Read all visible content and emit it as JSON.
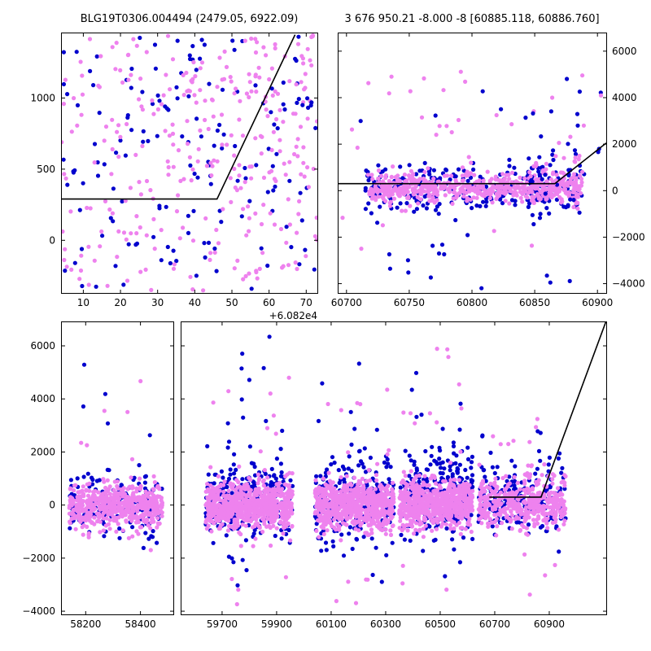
{
  "figure": {
    "background": "#ffffff",
    "frame_color": "#000000",
    "model_line_color": "#000000",
    "series_colors": {
      "blue": "#0000cd",
      "violet": "#ee82ee"
    },
    "marker_radius": 2.6
  },
  "chart_data": [
    {
      "id": "event-zoom",
      "type": "scatter",
      "title": "BLG19T0306.004494 (2479.05, 6922.09)",
      "xlim": [
        60824,
        60893
      ],
      "ylim": [
        -370,
        1460
      ],
      "x_offset_label": "+6.082e4",
      "xticks": [
        {
          "v": 60830,
          "label": "10"
        },
        {
          "v": 60840,
          "label": "20"
        },
        {
          "v": 60850,
          "label": "30"
        },
        {
          "v": 60860,
          "label": "40"
        },
        {
          "v": 60870,
          "label": "50"
        },
        {
          "v": 60880,
          "label": "60"
        },
        {
          "v": 60890,
          "label": "70"
        }
      ],
      "yticks": [
        {
          "v": 0,
          "label": "0"
        },
        {
          "v": 500,
          "label": "500"
        },
        {
          "v": 1000,
          "label": "1000"
        }
      ],
      "ytick_label_side": "left",
      "model_line": [
        [
          60824,
          290
        ],
        [
          60866,
          290
        ],
        [
          60887,
          1445
        ]
      ],
      "clusters": [
        {
          "color": "blue",
          "n": 130,
          "x": [
            60824,
            60893
          ],
          "ydist": "uniform",
          "y": [
            -360,
            1440
          ]
        },
        {
          "color": "violet",
          "n": 250,
          "x": [
            60824,
            60893
          ],
          "ydist": "uniform",
          "y": [
            -360,
            1440
          ]
        },
        {
          "color": "blue",
          "n": 30,
          "x": [
            60856,
            60892
          ],
          "ydist": "uniform",
          "y": [
            400,
            1440
          ]
        },
        {
          "color": "violet",
          "n": 60,
          "x": [
            60856,
            60892
          ],
          "ydist": "uniform",
          "y": [
            400,
            1440
          ]
        }
      ]
    },
    {
      "id": "season-zoom",
      "type": "scatter",
      "title": "3 676 950.21 -8.000 -8 [60885.118, 60886.760]",
      "xlim": [
        60693,
        60907
      ],
      "ylim": [
        -4400,
        6800
      ],
      "xticks": [
        {
          "v": 60700,
          "label": "60700"
        },
        {
          "v": 60750,
          "label": "60750"
        },
        {
          "v": 60800,
          "label": "60800"
        },
        {
          "v": 60850,
          "label": "60850"
        },
        {
          "v": 60900,
          "label": "60900"
        }
      ],
      "yticks": [
        {
          "v": 6000,
          "label": "6000"
        },
        {
          "v": 4000,
          "label": "4000"
        },
        {
          "v": 2000,
          "label": "2000"
        },
        {
          "v": 0,
          "label": "0"
        },
        {
          "v": -2000,
          "label": "−2000"
        },
        {
          "v": -4000,
          "label": "−4000"
        }
      ],
      "ytick_label_side": "right",
      "model_line": [
        [
          60693,
          300
        ],
        [
          60866,
          300
        ],
        [
          60907,
          2050
        ]
      ],
      "clusters": [
        {
          "color": "blue",
          "n": 270,
          "x": [
            60715,
            60888
          ],
          "ydist": "normal",
          "mu": 120,
          "sigma": 520,
          "clip": [
            -1900,
            2100
          ]
        },
        {
          "color": "blue",
          "n": 40,
          "x": [
            60695,
            60905
          ],
          "ydist": "uniform",
          "y": [
            -4300,
            5100
          ]
        },
        {
          "color": "violet",
          "n": 580,
          "x": [
            60718,
            60888
          ],
          "ydist": "normal",
          "mu": 130,
          "sigma": 300,
          "clip": [
            -1100,
            1400
          ]
        },
        {
          "color": "violet",
          "n": 45,
          "x": [
            60695,
            60905
          ],
          "ydist": "uniform",
          "y": [
            -2700,
            5200
          ]
        },
        {
          "color": "blue",
          "n": 35,
          "x": [
            60845,
            60888
          ],
          "ydist": "normal",
          "mu": 400,
          "sigma": 1100,
          "clip": [
            -2600,
            3600
          ]
        },
        {
          "color": "violet",
          "n": 50,
          "x": [
            60845,
            60888
          ],
          "ydist": "normal",
          "mu": 350,
          "sigma": 800,
          "clip": [
            -2200,
            3000
          ]
        }
      ]
    },
    {
      "id": "full-left",
      "type": "scatter",
      "title": "",
      "xlim": [
        58110,
        58520
      ],
      "ylim": [
        -4120,
        6920
      ],
      "xticks": [
        {
          "v": 58200,
          "label": "58200"
        },
        {
          "v": 58400,
          "label": "58400"
        }
      ],
      "yticks": [
        {
          "v": 6000,
          "label": "6000"
        },
        {
          "v": 4000,
          "label": "4000"
        },
        {
          "v": 2000,
          "label": "2000"
        },
        {
          "v": 0,
          "label": "0"
        },
        {
          "v": -2000,
          "label": "−2000"
        },
        {
          "v": -4000,
          "label": "−4000"
        }
      ],
      "ytick_label_side": "left",
      "model_line": null,
      "clusters": [
        {
          "color": "blue",
          "n": 170,
          "x": [
            58140,
            58480
          ],
          "ydist": "normal",
          "mu": 80,
          "sigma": 620,
          "clip": [
            -1500,
            2300
          ]
        },
        {
          "color": "blue",
          "n": 10,
          "x": [
            58160,
            58460
          ],
          "ydist": "uniform",
          "y": [
            -1800,
            6300
          ]
        },
        {
          "color": "violet",
          "n": 520,
          "x": [
            58140,
            58480
          ],
          "ydist": "normal",
          "mu": -30,
          "sigma": 420,
          "clip": [
            -2300,
            1400
          ]
        },
        {
          "color": "violet",
          "n": 10,
          "x": [
            58160,
            58460
          ],
          "ydist": "uniform",
          "y": [
            -2200,
            4700
          ]
        }
      ]
    },
    {
      "id": "full-right",
      "type": "scatter",
      "title": "",
      "xlim": [
        59548,
        61109
      ],
      "ylim": [
        -4120,
        6920
      ],
      "xticks": [
        {
          "v": 59700,
          "label": "59700"
        },
        {
          "v": 59900,
          "label": "59900"
        },
        {
          "v": 60100,
          "label": "60100"
        },
        {
          "v": 60300,
          "label": "60300"
        },
        {
          "v": 60500,
          "label": "60500"
        },
        {
          "v": 60700,
          "label": "60700"
        },
        {
          "v": 60900,
          "label": "60900"
        }
      ],
      "yticks": [
        {
          "v": 6000
        },
        {
          "v": 4000
        },
        {
          "v": 2000
        },
        {
          "v": 0
        },
        {
          "v": -2000
        },
        {
          "v": -4000
        }
      ],
      "ytick_label_side": "none",
      "model_line": [
        [
          60680,
          300
        ],
        [
          60870,
          300
        ],
        [
          61108,
          6920
        ]
      ],
      "clusters": [
        {
          "color": "blue",
          "n": 260,
          "x": [
            59640,
            59960
          ],
          "ydist": "normal",
          "mu": 180,
          "sigma": 820,
          "clip": [
            -2100,
            3600
          ]
        },
        {
          "color": "blue",
          "n": 18,
          "x": [
            59660,
            59950
          ],
          "ydist": "uniform",
          "y": [
            -3100,
            6350
          ]
        },
        {
          "color": "violet",
          "n": 700,
          "x": [
            59640,
            59960
          ],
          "ydist": "normal",
          "mu": 0,
          "sigma": 470,
          "clip": [
            -2700,
            1900
          ]
        },
        {
          "color": "violet",
          "n": 22,
          "x": [
            59660,
            59950
          ],
          "ydist": "uniform",
          "y": [
            -3900,
            4800
          ]
        },
        {
          "color": "blue",
          "n": 240,
          "x": [
            60040,
            60330
          ],
          "ydist": "normal",
          "mu": 180,
          "sigma": 760,
          "clip": [
            -1900,
            3200
          ]
        },
        {
          "color": "blue",
          "n": 16,
          "x": [
            60050,
            60320
          ],
          "ydist": "uniform",
          "y": [
            -2900,
            5900
          ]
        },
        {
          "color": "violet",
          "n": 640,
          "x": [
            60040,
            60330
          ],
          "ydist": "normal",
          "mu": 0,
          "sigma": 450,
          "clip": [
            -2500,
            1800
          ]
        },
        {
          "color": "violet",
          "n": 20,
          "x": [
            60050,
            60320
          ],
          "ydist": "uniform",
          "y": [
            -4000,
            4500
          ]
        },
        {
          "color": "blue",
          "n": 280,
          "x": [
            60350,
            60620
          ],
          "ydist": "normal",
          "mu": 280,
          "sigma": 820,
          "clip": [
            -1700,
            3400
          ]
        },
        {
          "color": "blue",
          "n": 16,
          "x": [
            60360,
            60610
          ],
          "ydist": "uniform",
          "y": [
            -2700,
            5600
          ]
        },
        {
          "color": "violet",
          "n": 640,
          "x": [
            60350,
            60620
          ],
          "ydist": "normal",
          "mu": 30,
          "sigma": 450,
          "clip": [
            -2400,
            1800
          ]
        },
        {
          "color": "violet",
          "n": 20,
          "x": [
            60360,
            60610
          ],
          "ydist": "uniform",
          "y": [
            -3400,
            6200
          ]
        },
        {
          "color": "blue",
          "n": 200,
          "x": [
            60640,
            60960
          ],
          "ydist": "normal",
          "mu": 200,
          "sigma": 680,
          "clip": [
            -1500,
            2900
          ]
        },
        {
          "color": "blue",
          "n": 13,
          "x": [
            60650,
            60950
          ],
          "ydist": "uniform",
          "y": [
            -2500,
            4500
          ]
        },
        {
          "color": "violet",
          "n": 440,
          "x": [
            60640,
            60960
          ],
          "ydist": "normal",
          "mu": 60,
          "sigma": 470,
          "clip": [
            -2100,
            1700
          ]
        },
        {
          "color": "violet",
          "n": 16,
          "x": [
            60650,
            60950
          ],
          "ydist": "uniform",
          "y": [
            -3900,
            4700
          ]
        }
      ]
    }
  ]
}
